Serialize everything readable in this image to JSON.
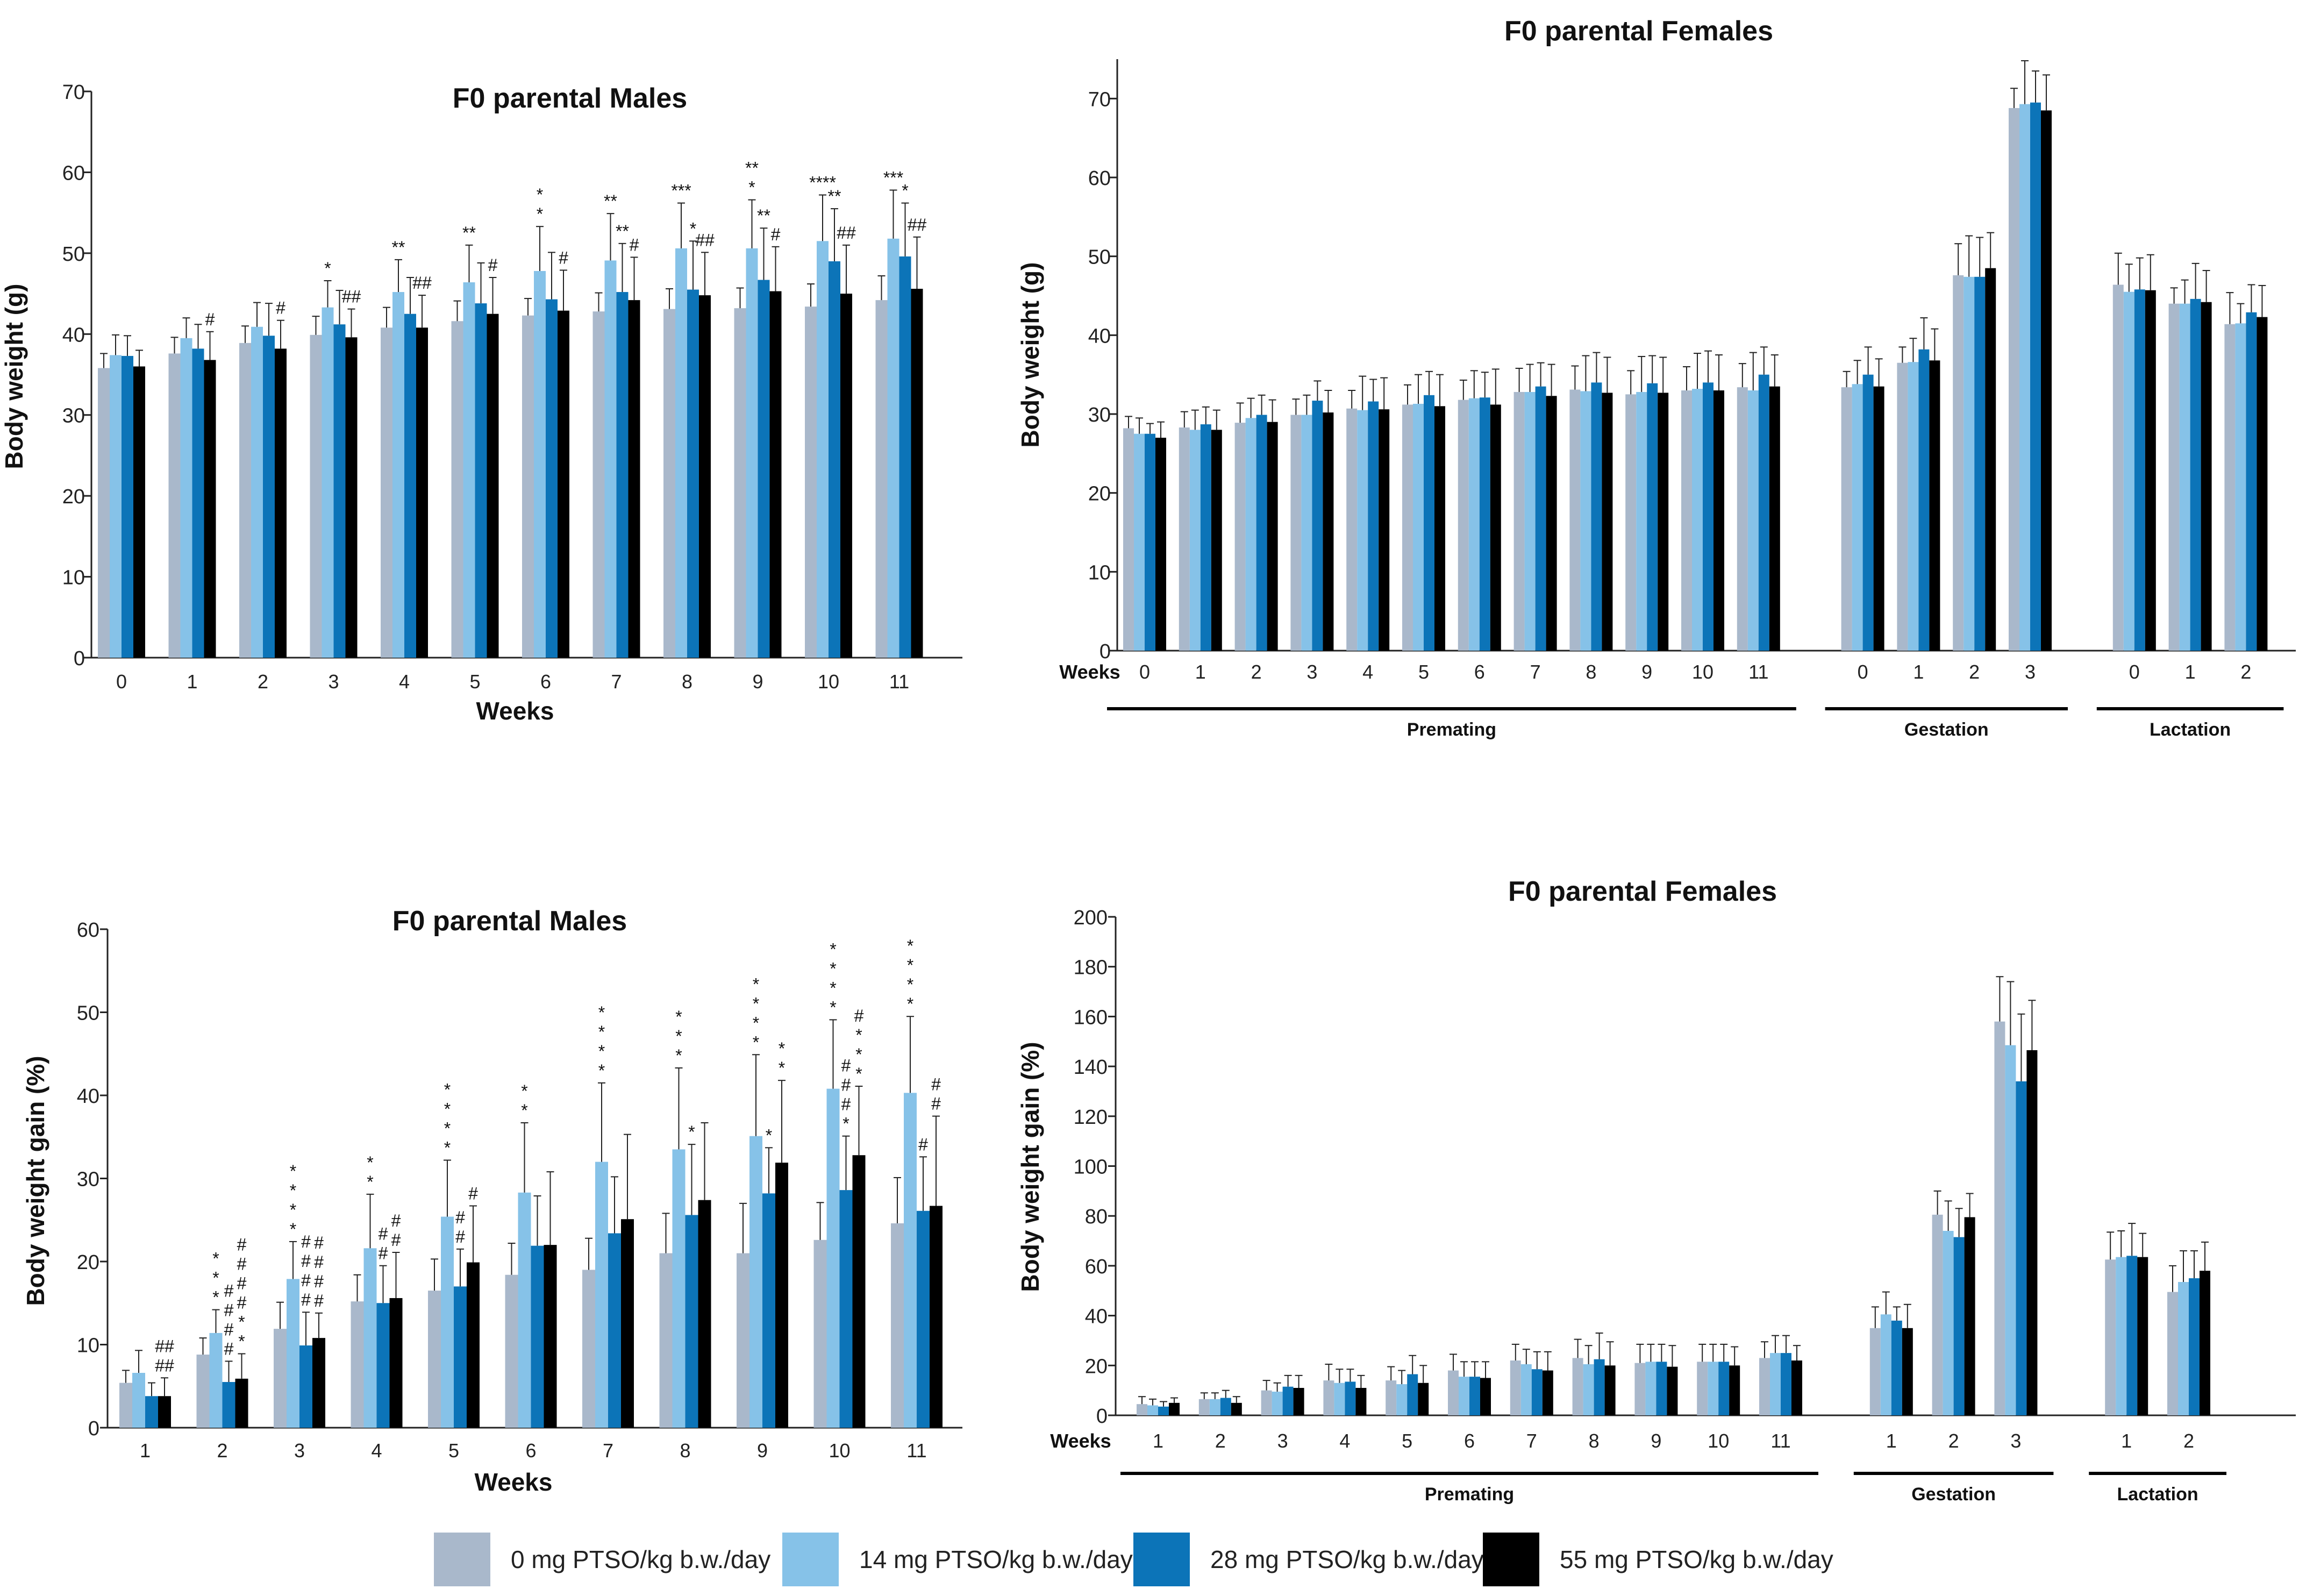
{
  "colors": {
    "series": [
      "#a9b8cb",
      "#86c2e8",
      "#0c74b8",
      "#000000"
    ],
    "axis": "#222222",
    "text": "#111111"
  },
  "legend": {
    "items": [
      {
        "label": "0 mg PTSO/kg b.w./day"
      },
      {
        "label": "14 mg PTSO/kg b.w./day"
      },
      {
        "label": "28 mg PTSO/kg b.w./day"
      },
      {
        "label": "55 mg PTSO/kg b.w./day"
      }
    ]
  },
  "chart_data": [
    {
      "id": "male-weight",
      "type": "bar",
      "title": "F0 parental Males",
      "ylabel": "Body weight (g)",
      "xlabel": "Weeks",
      "ylim": [
        0,
        70
      ],
      "yticks": [
        0,
        10,
        20,
        30,
        40,
        50,
        60,
        70
      ],
      "groups": [
        {
          "label": "",
          "categories": [
            "0",
            "1",
            "2",
            "3",
            "4",
            "5",
            "6",
            "7",
            "8",
            "9",
            "10",
            "11"
          ]
        }
      ],
      "series": [
        {
          "values": [
            35.8,
            37.6,
            38.9,
            39.9,
            40.8,
            41.6,
            42.3,
            42.8,
            43.1,
            43.2,
            43.4,
            44.2
          ],
          "errors": [
            1.8,
            2.0,
            2.1,
            2.3,
            2.5,
            2.5,
            2.1,
            2.3,
            2.5,
            2.5,
            2.8,
            3.0
          ]
        },
        {
          "values": [
            37.4,
            39.5,
            40.9,
            43.3,
            45.2,
            46.4,
            47.8,
            49.1,
            50.6,
            50.6,
            51.5,
            51.8
          ],
          "errors": [
            2.5,
            2.5,
            3.0,
            3.3,
            4.0,
            4.6,
            5.5,
            5.8,
            5.6,
            6.0,
            5.7,
            6.0
          ]
        },
        {
          "values": [
            37.3,
            38.2,
            39.8,
            41.2,
            42.5,
            43.8,
            44.3,
            45.2,
            45.5,
            46.7,
            49.0,
            49.6
          ],
          "errors": [
            2.5,
            3.0,
            4.0,
            4.2,
            4.5,
            5.0,
            5.8,
            6.0,
            6.0,
            6.4,
            6.5,
            6.6
          ]
        },
        {
          "values": [
            36.0,
            36.8,
            38.2,
            39.6,
            40.8,
            42.5,
            42.9,
            44.2,
            44.8,
            45.3,
            45.0,
            45.6
          ],
          "errors": [
            2.0,
            3.5,
            3.5,
            3.5,
            4.0,
            4.5,
            5.0,
            5.3,
            5.3,
            5.5,
            6.0,
            6.4
          ]
        }
      ],
      "annotations": [
        {
          "cat": 1,
          "series": 3,
          "text": [
            "#"
          ]
        },
        {
          "cat": 2,
          "series": 3,
          "text": [
            "#"
          ]
        },
        {
          "cat": 3,
          "series": 1,
          "text": [
            "*"
          ]
        },
        {
          "cat": 3,
          "series": 3,
          "text": [
            "##"
          ]
        },
        {
          "cat": 4,
          "series": 1,
          "text": [
            "**"
          ]
        },
        {
          "cat": 4,
          "series": 3,
          "text": [
            "##"
          ]
        },
        {
          "cat": 5,
          "series": 1,
          "text": [
            "**"
          ]
        },
        {
          "cat": 5,
          "series": 3,
          "text": [
            "#"
          ]
        },
        {
          "cat": 6,
          "series": 1,
          "text": [
            "*",
            "*"
          ]
        },
        {
          "cat": 6,
          "series": 3,
          "text": [
            "#"
          ]
        },
        {
          "cat": 7,
          "series": 1,
          "text": [
            "**"
          ]
        },
        {
          "cat": 7,
          "series": 2,
          "text": [
            "**"
          ]
        },
        {
          "cat": 7,
          "series": 3,
          "text": [
            "#"
          ]
        },
        {
          "cat": 8,
          "series": 1,
          "text": [
            "***"
          ]
        },
        {
          "cat": 8,
          "series": 2,
          "text": [
            "*"
          ]
        },
        {
          "cat": 8,
          "series": 3,
          "text": [
            "##"
          ]
        },
        {
          "cat": 9,
          "series": 1,
          "text": [
            "**",
            "*"
          ]
        },
        {
          "cat": 9,
          "series": 2,
          "text": [
            "**"
          ]
        },
        {
          "cat": 9,
          "series": 3,
          "text": [
            "#"
          ]
        },
        {
          "cat": 10,
          "series": 1,
          "text": [
            "****"
          ]
        },
        {
          "cat": 10,
          "series": 2,
          "text": [
            "**"
          ]
        },
        {
          "cat": 10,
          "series": 3,
          "text": [
            "##"
          ]
        },
        {
          "cat": 11,
          "series": 1,
          "text": [
            "***"
          ]
        },
        {
          "cat": 11,
          "series": 2,
          "text": [
            "*"
          ]
        },
        {
          "cat": 11,
          "series": 3,
          "text": [
            "##"
          ]
        }
      ]
    },
    {
      "id": "female-weight",
      "type": "bar",
      "title": "F0 parental Females",
      "ylabel": "Body weight (g)",
      "xlabel": "Weeks",
      "ylim": [
        0,
        75
      ],
      "yticks": [
        0,
        10,
        20,
        30,
        40,
        50,
        60,
        70
      ],
      "groups": [
        {
          "label": "Premating",
          "categories": [
            "0",
            "1",
            "2",
            "3",
            "4",
            "5",
            "6",
            "7",
            "8",
            "9",
            "10",
            "11"
          ]
        },
        {
          "label": "Gestation",
          "categories": [
            "0",
            "1",
            "2",
            "3"
          ]
        },
        {
          "label": "Lactation",
          "categories": [
            "0",
            "1",
            "2"
          ]
        }
      ],
      "series": [
        {
          "values": [
            28.2,
            28.3,
            28.9,
            29.9,
            30.7,
            31.2,
            31.8,
            32.8,
            33.1,
            32.5,
            33.0,
            33.4,
            33.4,
            36.5,
            47.6,
            68.8,
            46.4,
            44.0,
            41.4
          ],
          "errors": [
            1.5,
            2.0,
            2.5,
            2.0,
            2.3,
            2.5,
            2.5,
            3.0,
            3.0,
            3.0,
            3.0,
            3.0,
            2.0,
            2.0,
            4.0,
            2.5,
            4.0,
            2.0,
            4.0
          ]
        },
        {
          "values": [
            27.5,
            28.0,
            29.5,
            29.9,
            30.5,
            31.3,
            32.0,
            32.8,
            32.9,
            32.8,
            33.2,
            33.0,
            33.8,
            36.6,
            47.4,
            69.3,
            45.5,
            44.0,
            41.5
          ],
          "errors": [
            2.0,
            2.5,
            2.5,
            2.5,
            4.3,
            3.7,
            3.5,
            3.5,
            4.5,
            4.5,
            4.5,
            4.8,
            3.0,
            3.0,
            5.2,
            5.5,
            3.5,
            3.0,
            2.5
          ]
        },
        {
          "values": [
            27.5,
            28.7,
            29.9,
            31.7,
            31.6,
            32.4,
            32.1,
            33.5,
            34.0,
            33.9,
            34.0,
            35.0,
            35.0,
            38.2,
            47.4,
            69.5,
            45.8,
            44.6,
            42.9
          ],
          "errors": [
            1.3,
            2.2,
            2.5,
            2.5,
            2.8,
            3.0,
            3.2,
            3.0,
            3.8,
            3.5,
            4.0,
            3.5,
            3.5,
            4.0,
            5.0,
            4.0,
            4.0,
            4.5,
            3.5
          ]
        },
        {
          "values": [
            27.0,
            28.0,
            29.0,
            30.2,
            30.6,
            31.0,
            31.2,
            32.3,
            32.7,
            32.7,
            33.0,
            33.5,
            33.5,
            36.8,
            48.5,
            68.5,
            45.7,
            44.2,
            42.3
          ],
          "errors": [
            2.0,
            2.5,
            2.8,
            2.8,
            4.0,
            4.0,
            4.5,
            4.0,
            4.5,
            4.5,
            4.5,
            4.0,
            3.5,
            4.0,
            4.5,
            4.5,
            4.5,
            4.0,
            4.0
          ]
        }
      ],
      "annotations": []
    },
    {
      "id": "male-gain",
      "type": "bar",
      "title": "F0 parental Males",
      "ylabel": "Body weight gain (%)",
      "xlabel": "Weeks",
      "ylim": [
        0,
        60
      ],
      "yticks": [
        0,
        10,
        20,
        30,
        40,
        50,
        60
      ],
      "groups": [
        {
          "label": "",
          "categories": [
            "1",
            "2",
            "3",
            "4",
            "5",
            "6",
            "7",
            "8",
            "9",
            "10",
            "11"
          ]
        }
      ],
      "series": [
        {
          "values": [
            5.4,
            8.8,
            11.9,
            15.2,
            16.5,
            18.4,
            19.0,
            21.0,
            21.0,
            22.6,
            24.6
          ],
          "errors": [
            1.5,
            2.0,
            3.2,
            3.2,
            3.8,
            3.8,
            3.8,
            4.8,
            6.0,
            4.5,
            5.5
          ]
        },
        {
          "values": [
            6.6,
            11.4,
            17.9,
            21.6,
            25.4,
            28.3,
            32.0,
            33.5,
            35.1,
            40.8,
            40.3
          ],
          "errors": [
            2.7,
            2.8,
            4.5,
            6.5,
            6.8,
            8.4,
            9.5,
            9.8,
            9.8,
            8.3,
            9.2
          ]
        },
        {
          "values": [
            3.8,
            5.5,
            9.9,
            15.0,
            17.0,
            21.9,
            23.4,
            25.6,
            28.2,
            28.6,
            26.1
          ],
          "errors": [
            1.6,
            2.5,
            4.0,
            4.5,
            4.5,
            6.0,
            6.8,
            8.5,
            5.5,
            6.5,
            6.5
          ]
        },
        {
          "values": [
            3.8,
            5.9,
            10.8,
            15.6,
            19.9,
            22.0,
            25.1,
            27.4,
            31.9,
            32.8,
            26.7
          ],
          "errors": [
            2.2,
            3.0,
            3.0,
            5.5,
            6.8,
            8.8,
            10.2,
            9.3,
            9.9,
            8.3,
            10.8
          ]
        }
      ],
      "annotations": [
        {
          "cat": 0,
          "series": 3,
          "text": [
            "##",
            "##"
          ]
        },
        {
          "cat": 1,
          "series": 1,
          "text": [
            "*",
            "*",
            "*"
          ]
        },
        {
          "cat": 1,
          "series": 2,
          "text": [
            "#",
            "#",
            "#",
            "#"
          ]
        },
        {
          "cat": 1,
          "series": 3,
          "text": [
            "#",
            "#",
            "#",
            "#",
            "*",
            "*"
          ]
        },
        {
          "cat": 2,
          "series": 1,
          "text": [
            "*",
            "*",
            "*",
            "*"
          ]
        },
        {
          "cat": 2,
          "series": 2,
          "text": [
            "#",
            "#",
            "#",
            "#"
          ]
        },
        {
          "cat": 2,
          "series": 3,
          "text": [
            "#",
            "#",
            "#",
            "#"
          ]
        },
        {
          "cat": 3,
          "series": 1,
          "text": [
            "*",
            "*"
          ]
        },
        {
          "cat": 3,
          "series": 2,
          "text": [
            "#",
            "#"
          ]
        },
        {
          "cat": 3,
          "series": 3,
          "text": [
            "#",
            "#"
          ]
        },
        {
          "cat": 4,
          "series": 1,
          "text": [
            "*",
            "*",
            "*",
            "*"
          ]
        },
        {
          "cat": 4,
          "series": 2,
          "text": [
            "#",
            "#"
          ]
        },
        {
          "cat": 4,
          "series": 3,
          "text": [
            "#"
          ]
        },
        {
          "cat": 5,
          "series": 1,
          "text": [
            "*",
            "*"
          ]
        },
        {
          "cat": 6,
          "series": 1,
          "text": [
            "*",
            "*",
            "*",
            "*"
          ]
        },
        {
          "cat": 7,
          "series": 1,
          "text": [
            "*",
            "*",
            "*"
          ]
        },
        {
          "cat": 7,
          "series": 2,
          "text": [
            "*"
          ]
        },
        {
          "cat": 8,
          "series": 1,
          "text": [
            "*",
            "*",
            "*",
            "*"
          ]
        },
        {
          "cat": 8,
          "series": 2,
          "text": [
            "*"
          ]
        },
        {
          "cat": 8,
          "series": 3,
          "text": [
            "*",
            "*"
          ]
        },
        {
          "cat": 9,
          "series": 1,
          "text": [
            "*",
            "*",
            "*",
            "*"
          ]
        },
        {
          "cat": 9,
          "series": 2,
          "text": [
            "#",
            "#",
            "#",
            "*"
          ]
        },
        {
          "cat": 9,
          "series": 3,
          "text": [
            "#",
            "*",
            "*",
            "*"
          ]
        },
        {
          "cat": 10,
          "series": 1,
          "text": [
            "*",
            "*",
            "*",
            "*"
          ]
        },
        {
          "cat": 10,
          "series": 2,
          "text": [
            "#"
          ]
        },
        {
          "cat": 10,
          "series": 3,
          "text": [
            "#",
            "#"
          ]
        }
      ]
    },
    {
      "id": "female-gain",
      "type": "bar",
      "title": "F0 parental Females",
      "ylabel": "Body weight gain (%)",
      "xlabel": "Weeks",
      "ylim": [
        0,
        200
      ],
      "yticks": [
        0,
        20,
        40,
        60,
        80,
        100,
        120,
        140,
        160,
        180,
        200
      ],
      "groups": [
        {
          "label": "Premating",
          "categories": [
            "1",
            "2",
            "3",
            "4",
            "5",
            "6",
            "7",
            "8",
            "9",
            "10",
            "11"
          ]
        },
        {
          "label": "Gestation",
          "categories": [
            "1",
            "2",
            "3"
          ]
        },
        {
          "label": "Lactation",
          "categories": [
            "1",
            "2"
          ]
        }
      ],
      "series": [
        {
          "values": [
            4.5,
            6.5,
            10.0,
            14.0,
            14.0,
            18.0,
            22.0,
            23.0,
            21.0,
            21.5,
            23.0,
            35.0,
            80.5,
            158.0,
            62.5,
            49.5
          ],
          "errors": [
            3.0,
            2.5,
            4.0,
            6.5,
            5.5,
            6.5,
            6.5,
            7.5,
            7.5,
            7.0,
            6.5,
            8.5,
            9.5,
            18.0,
            11.0,
            10.5
          ]
        },
        {
          "values": [
            4.0,
            6.5,
            9.5,
            13.0,
            12.5,
            15.5,
            20.5,
            20.5,
            21.5,
            21.5,
            25.0,
            40.5,
            74.0,
            148.5,
            63.5,
            53.5
          ],
          "errors": [
            2.5,
            2.5,
            3.5,
            5.5,
            5.5,
            6.0,
            6.0,
            7.5,
            7.0,
            7.0,
            7.0,
            9.0,
            12.0,
            25.5,
            10.5,
            12.5
          ]
        },
        {
          "values": [
            3.5,
            7.0,
            11.5,
            13.5,
            16.5,
            15.5,
            18.5,
            22.5,
            21.5,
            21.5,
            25.0,
            38.0,
            71.5,
            134.0,
            64.0,
            55.0
          ],
          "errors": [
            2.0,
            3.0,
            4.5,
            5.0,
            7.5,
            6.0,
            7.0,
            10.5,
            7.0,
            7.0,
            7.0,
            5.5,
            11.5,
            27.0,
            13.0,
            11.0
          ]
        },
        {
          "values": [
            5.0,
            5.0,
            11.0,
            11.0,
            13.0,
            15.0,
            18.0,
            20.0,
            19.5,
            20.0,
            22.0,
            35.0,
            79.5,
            146.5,
            63.5,
            58.0
          ],
          "errors": [
            2.0,
            2.5,
            5.0,
            5.0,
            7.0,
            6.5,
            7.5,
            9.5,
            8.5,
            7.5,
            6.0,
            9.5,
            9.5,
            20.0,
            9.5,
            11.5
          ]
        }
      ],
      "annotations": []
    }
  ]
}
